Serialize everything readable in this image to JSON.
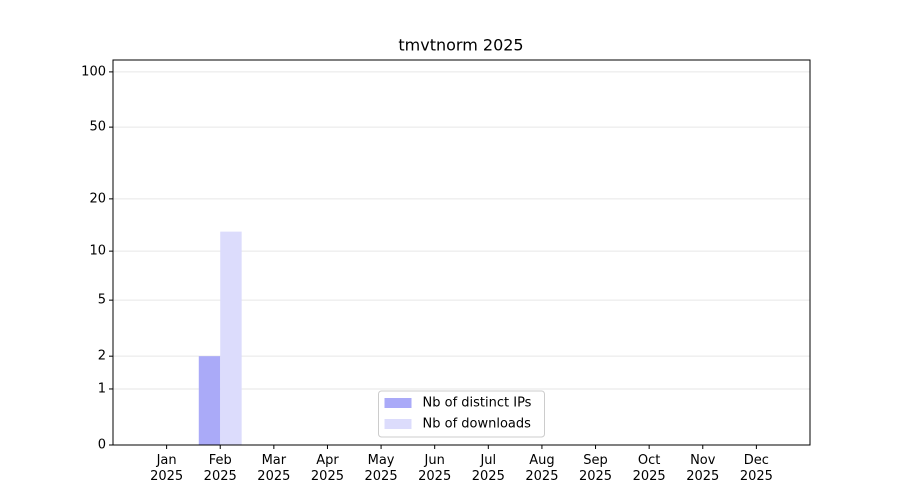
{
  "chart_data": {
    "type": "bar",
    "title": "tmvtnorm 2025",
    "categories": [
      "Jan\n2025",
      "Feb\n2025",
      "Mar\n2025",
      "Apr\n2025",
      "May\n2025",
      "Jun\n2025",
      "Jul\n2025",
      "Aug\n2025",
      "Sep\n2025",
      "Oct\n2025",
      "Nov\n2025",
      "Dec\n2025"
    ],
    "series": [
      {
        "name": "Nb of distinct IPs",
        "color": "#aaaaf8",
        "values": [
          0,
          2,
          0,
          0,
          0,
          0,
          0,
          0,
          0,
          0,
          0,
          0
        ]
      },
      {
        "name": "Nb of downloads",
        "color": "#dcdcfc",
        "values": [
          0,
          13,
          0,
          0,
          0,
          0,
          0,
          0,
          0,
          0,
          0,
          0
        ]
      }
    ],
    "yscale": "symlog",
    "ylim": [
      0,
      116
    ],
    "yticks": [
      0,
      1,
      2,
      5,
      10,
      20,
      50,
      100
    ],
    "grid": true,
    "legend": "lower center"
  }
}
